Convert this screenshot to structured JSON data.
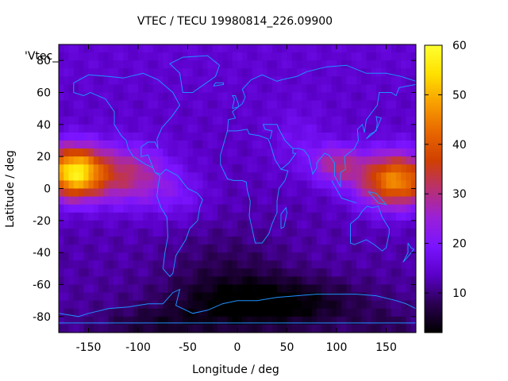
{
  "chart_data": {
    "type": "heatmap",
    "title": "VTEC / TECU 19980814_226.09900",
    "xlabel": "Longitude / deg",
    "ylabel": "Latitude / deg",
    "xlim": [
      -180,
      180
    ],
    "ylim": [
      -90,
      90
    ],
    "x_ticks": [
      "-150",
      "-100",
      "-50",
      "0",
      "50",
      "100",
      "150"
    ],
    "x_tick_values": [
      -150,
      -100,
      -50,
      0,
      50,
      100,
      150
    ],
    "y_ticks": [
      "-80",
      "-60",
      "-40",
      "-20",
      "0",
      "20",
      "40",
      "60",
      "80"
    ],
    "y_tick_values": [
      -80,
      -60,
      -40,
      -20,
      0,
      20,
      40,
      60,
      80
    ],
    "colorbar": {
      "min": 2,
      "max": 60,
      "ticks": [
        "10",
        "20",
        "30",
        "40",
        "50",
        "60"
      ],
      "tick_values": [
        10,
        20,
        30,
        40,
        50,
        60
      ],
      "palette": [
        "#000000",
        "#2a0050",
        "#5a00c8",
        "#7a14ff",
        "#9a20d8",
        "#b83070",
        "#d04000",
        "#e86800",
        "#f8a000",
        "#ffe000",
        "#ffff30"
      ]
    },
    "legend": {
      "label": "'Vtec_",
      "placement": "top-left"
    },
    "grid": false,
    "features": {
      "max_value": 58,
      "max_location": [
        -165,
        10
      ],
      "secondary_max_location": [
        150,
        5
      ],
      "min_value": 3,
      "min_location": [
        30,
        -75
      ]
    },
    "coastline_color": "#1e90ff"
  }
}
